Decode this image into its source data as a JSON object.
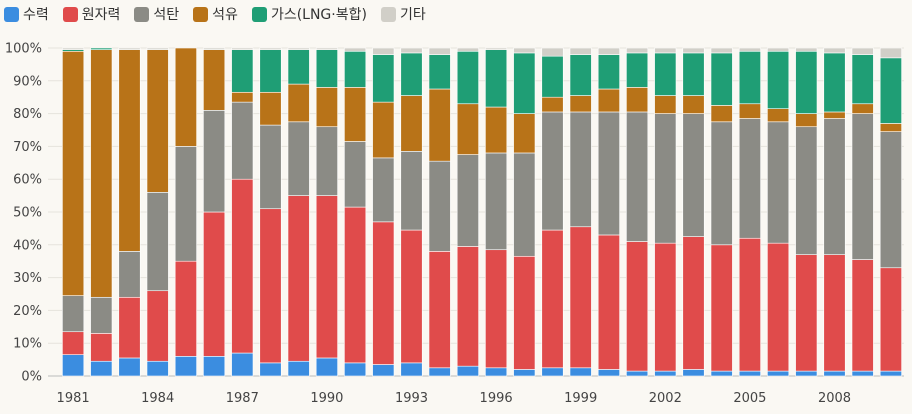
{
  "chart_data": {
    "type": "bar",
    "stacked": true,
    "normalized": true,
    "title": "",
    "xlabel": "",
    "ylabel": "",
    "ylim": [
      0,
      100
    ],
    "y_ticks": [
      "0%",
      "10%",
      "20%",
      "30%",
      "40%",
      "50%",
      "60%",
      "70%",
      "80%",
      "90%",
      "100%"
    ],
    "x_tick_labels": [
      "1981",
      "1984",
      "1987",
      "1990",
      "1993",
      "1996",
      "1999",
      "2002",
      "2005",
      "2008"
    ],
    "legend_position": "top-left",
    "grid": true,
    "categories": [
      "1981",
      "1982",
      "1983",
      "1984",
      "1985",
      "1986",
      "1987",
      "1988",
      "1989",
      "1990",
      "1991",
      "1992",
      "1993",
      "1994",
      "1995",
      "1996",
      "1997",
      "1998",
      "1999",
      "2000",
      "2001",
      "2002",
      "2003",
      "2004",
      "2005",
      "2006",
      "2007",
      "2008",
      "2009",
      "2010"
    ],
    "series": [
      {
        "name": "수력",
        "color": "#3b8de0",
        "values": [
          6.5,
          4.5,
          5.5,
          4.5,
          6.0,
          6.0,
          7.0,
          4.0,
          4.5,
          5.5,
          4.0,
          3.5,
          4.0,
          2.5,
          3.0,
          2.5,
          2.0,
          2.5,
          2.5,
          2.0,
          1.5,
          1.5,
          2.0,
          1.5,
          1.5,
          1.5,
          1.5,
          1.5,
          1.5,
          1.5
        ]
      },
      {
        "name": "원자력",
        "color": "#e04b4b",
        "values": [
          7.0,
          8.5,
          18.5,
          21.5,
          29.0,
          44.0,
          53.0,
          47.0,
          50.5,
          49.5,
          47.5,
          43.5,
          40.5,
          35.5,
          36.5,
          36.0,
          34.5,
          42.0,
          43.0,
          41.0,
          39.5,
          39.0,
          40.5,
          38.5,
          40.5,
          39.0,
          35.5,
          35.5,
          34.0,
          31.5
        ]
      },
      {
        "name": "석탄",
        "color": "#8b8b85",
        "values": [
          11.0,
          11.0,
          14.0,
          30.0,
          35.0,
          31.0,
          23.5,
          25.5,
          22.5,
          21.0,
          20.0,
          19.5,
          24.0,
          27.5,
          28.0,
          29.5,
          31.5,
          36.0,
          35.0,
          37.5,
          39.5,
          39.5,
          37.5,
          37.5,
          36.5,
          37.0,
          39.0,
          41.5,
          44.5,
          41.5
        ]
      },
      {
        "name": "석유",
        "color": "#b87318",
        "values": [
          74.5,
          75.5,
          61.5,
          43.5,
          30.0,
          18.5,
          3.0,
          10.0,
          11.5,
          12.0,
          16.5,
          17.0,
          17.0,
          22.0,
          15.5,
          14.0,
          12.0,
          4.5,
          5.0,
          7.0,
          7.5,
          5.5,
          5.5,
          5.0,
          4.5,
          4.0,
          4.0,
          2.0,
          3.0,
          2.5
        ]
      },
      {
        "name": "가스(LNG·복합)",
        "color": "#1f9e75",
        "values": [
          0.5,
          0.5,
          0.0,
          0.0,
          0.0,
          0.0,
          13.0,
          13.0,
          10.5,
          11.5,
          11.0,
          14.5,
          13.0,
          10.5,
          16.0,
          17.5,
          18.5,
          12.5,
          12.5,
          10.5,
          10.5,
          13.0,
          13.0,
          16.0,
          16.0,
          17.5,
          19.0,
          18.0,
          15.0,
          20.0
        ]
      },
      {
        "name": "기타",
        "color": "#d1cfc8",
        "values": [
          0.5,
          0.0,
          0.5,
          0.5,
          0.0,
          0.5,
          0.5,
          0.5,
          0.5,
          0.5,
          1.0,
          2.0,
          1.5,
          2.0,
          1.0,
          0.5,
          1.5,
          2.5,
          2.0,
          2.0,
          1.5,
          1.5,
          1.5,
          1.5,
          1.0,
          1.0,
          1.0,
          1.5,
          2.0,
          3.0
        ]
      }
    ]
  }
}
